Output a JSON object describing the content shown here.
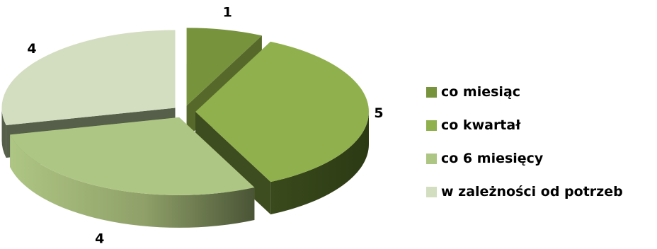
{
  "chart_data": {
    "type": "pie",
    "title": "",
    "categories": [
      "co miesiąc",
      "co kwartał",
      "co 6 miesięcy",
      "w zależności od potrzeb"
    ],
    "values": [
      1,
      5,
      4,
      4
    ],
    "data_labels": [
      "1",
      "5",
      "4",
      "4"
    ],
    "colors": [
      "#77933C",
      "#8FB04C",
      "#AEC684",
      "#D3DDBF"
    ],
    "side_colors": [
      "#56692B",
      "#3E4D1F",
      "#7E9158",
      "#555F49"
    ],
    "legend_position": "right",
    "style": "3d-exploded"
  }
}
